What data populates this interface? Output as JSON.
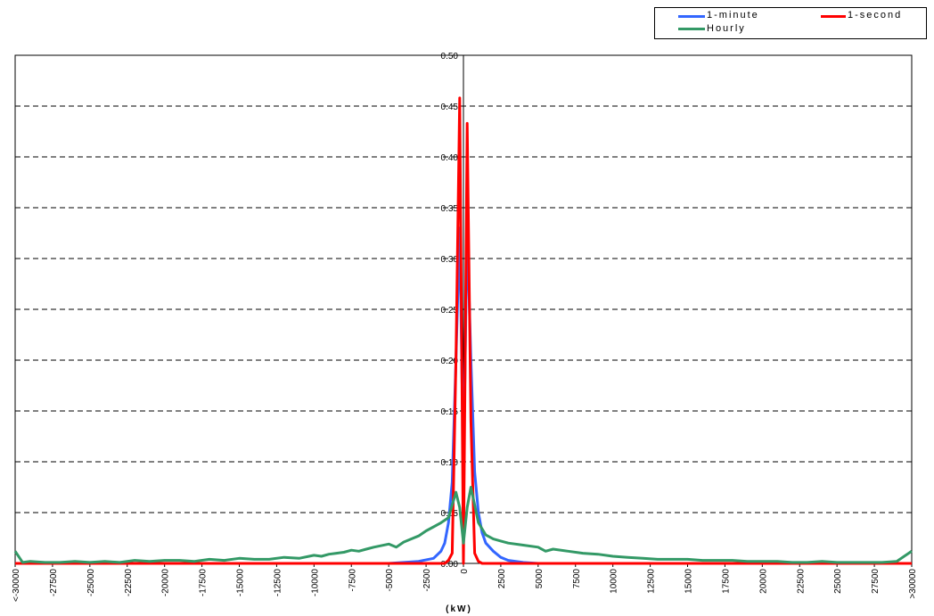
{
  "chart_data": {
    "type": "line",
    "title": "",
    "xlabel": "(kW)",
    "ylabel": "",
    "ylim": [
      0,
      0.5
    ],
    "yticks": [
      "0.00",
      "0.05",
      "0.10",
      "0.15",
      "0.20",
      "0.25",
      "0.30",
      "0.35",
      "0.40",
      "0.45",
      "0.50"
    ],
    "xticks": [
      "<-30000",
      "-27500",
      "-25000",
      "-22500",
      "-20000",
      "-17500",
      "-15000",
      "-12500",
      "-10000",
      "-7500",
      "-5000",
      "-2500",
      "0",
      "2500",
      "5000",
      "7500",
      "10000",
      "12500",
      "15000",
      "17500",
      "20000",
      "22500",
      "25000",
      "27500",
      ">30000"
    ],
    "grid": true,
    "legend_position": "top-right",
    "x_range": [
      -30000,
      30000
    ],
    "series": [
      {
        "name": "1-minute",
        "color": "#3366ff",
        "points": [
          [
            -30000,
            0.0
          ],
          [
            -5000,
            0.0
          ],
          [
            -3000,
            0.002
          ],
          [
            -2000,
            0.005
          ],
          [
            -1500,
            0.012
          ],
          [
            -1250,
            0.02
          ],
          [
            -1000,
            0.04
          ],
          [
            -750,
            0.08
          ],
          [
            -500,
            0.2
          ],
          [
            -250,
            0.33
          ],
          [
            0,
            0.09
          ],
          [
            250,
            0.33
          ],
          [
            500,
            0.2
          ],
          [
            750,
            0.09
          ],
          [
            1000,
            0.05
          ],
          [
            1250,
            0.03
          ],
          [
            1500,
            0.02
          ],
          [
            2000,
            0.012
          ],
          [
            2500,
            0.006
          ],
          [
            3000,
            0.003
          ],
          [
            4000,
            0.001
          ],
          [
            5000,
            0.0
          ],
          [
            30000,
            0.0
          ]
        ]
      },
      {
        "name": "1-second",
        "color": "#ff0000",
        "points": [
          [
            -30000,
            0.0
          ],
          [
            -1250,
            0.0
          ],
          [
            -1000,
            0.003
          ],
          [
            -750,
            0.01
          ],
          [
            -500,
            0.2
          ],
          [
            -250,
            0.458
          ],
          [
            0,
            0.0
          ],
          [
            250,
            0.433
          ],
          [
            500,
            0.14
          ],
          [
            750,
            0.01
          ],
          [
            1000,
            0.002
          ],
          [
            1250,
            0.0
          ],
          [
            30000,
            0.0
          ]
        ]
      },
      {
        "name": "Hourly",
        "color": "#339966",
        "points": [
          [
            -30000,
            0.012
          ],
          [
            -29500,
            0.001
          ],
          [
            -29000,
            0.002
          ],
          [
            -28000,
            0.001
          ],
          [
            -27000,
            0.001
          ],
          [
            -26000,
            0.002
          ],
          [
            -25000,
            0.001
          ],
          [
            -24000,
            0.002
          ],
          [
            -23000,
            0.001
          ],
          [
            -22000,
            0.003
          ],
          [
            -21000,
            0.002
          ],
          [
            -20000,
            0.003
          ],
          [
            -19000,
            0.003
          ],
          [
            -18000,
            0.002
          ],
          [
            -17000,
            0.004
          ],
          [
            -16000,
            0.003
          ],
          [
            -15000,
            0.005
          ],
          [
            -14000,
            0.004
          ],
          [
            -13000,
            0.004
          ],
          [
            -12000,
            0.006
          ],
          [
            -11000,
            0.005
          ],
          [
            -10000,
            0.008
          ],
          [
            -9500,
            0.007
          ],
          [
            -9000,
            0.009
          ],
          [
            -8500,
            0.01
          ],
          [
            -8000,
            0.011
          ],
          [
            -7500,
            0.013
          ],
          [
            -7000,
            0.012
          ],
          [
            -6500,
            0.014
          ],
          [
            -6000,
            0.016
          ],
          [
            -5000,
            0.019
          ],
          [
            -4500,
            0.016
          ],
          [
            -4000,
            0.021
          ],
          [
            -3500,
            0.024
          ],
          [
            -3000,
            0.027
          ],
          [
            -2500,
            0.032
          ],
          [
            -2000,
            0.036
          ],
          [
            -1500,
            0.04
          ],
          [
            -1000,
            0.045
          ],
          [
            -500,
            0.07
          ],
          [
            -250,
            0.055
          ],
          [
            0,
            0.02
          ],
          [
            250,
            0.055
          ],
          [
            500,
            0.075
          ],
          [
            1000,
            0.04
          ],
          [
            1500,
            0.028
          ],
          [
            2000,
            0.024
          ],
          [
            2500,
            0.022
          ],
          [
            3000,
            0.02
          ],
          [
            4000,
            0.018
          ],
          [
            5000,
            0.016
          ],
          [
            5500,
            0.012
          ],
          [
            6000,
            0.014
          ],
          [
            7000,
            0.012
          ],
          [
            8000,
            0.01
          ],
          [
            9000,
            0.009
          ],
          [
            10000,
            0.007
          ],
          [
            11000,
            0.006
          ],
          [
            12000,
            0.005
          ],
          [
            13000,
            0.004
          ],
          [
            14000,
            0.004
          ],
          [
            15000,
            0.004
          ],
          [
            16000,
            0.003
          ],
          [
            17000,
            0.003
          ],
          [
            18000,
            0.003
          ],
          [
            19000,
            0.002
          ],
          [
            20000,
            0.002
          ],
          [
            21000,
            0.002
          ],
          [
            22000,
            0.001
          ],
          [
            23000,
            0.001
          ],
          [
            24000,
            0.002
          ],
          [
            25000,
            0.001
          ],
          [
            26000,
            0.001
          ],
          [
            27000,
            0.001
          ],
          [
            28000,
            0.001
          ],
          [
            29000,
            0.002
          ],
          [
            30000,
            0.012
          ]
        ]
      }
    ]
  }
}
